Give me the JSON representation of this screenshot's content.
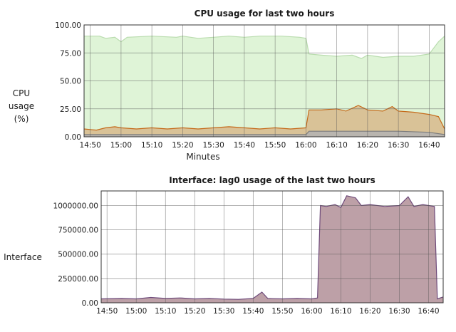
{
  "charts": {
    "cpu": {
      "title": "CPU usage for last two hours",
      "ylabel": [
        "CPU",
        "usage",
        "(%)"
      ],
      "xlabel": "Minutes"
    },
    "iface": {
      "title": "Interface: lag0 usage of the last two hours",
      "ylabel": "Interface"
    }
  },
  "chart_data": [
    {
      "type": "area",
      "title": "CPU usage for last two hours",
      "xlabel": "Minutes",
      "ylabel": "CPU usage (%)",
      "ylim": [
        0,
        100
      ],
      "yticks": [
        "0.00",
        "25.00",
        "50.00",
        "75.00",
        "100.00"
      ],
      "xticks": [
        "14:50",
        "15:00",
        "15:10",
        "15:20",
        "15:30",
        "15:40",
        "15:50",
        "16:00",
        "16:10",
        "16:20",
        "16:30",
        "16:40"
      ],
      "xlim": [
        "14:48",
        "16:45"
      ],
      "grid": true,
      "series": [
        {
          "color": "#d9f2d0",
          "line_color": "#b9dcae",
          "points": [
            [
              "14:48",
              90
            ],
            [
              "14:53",
              90
            ],
            [
              "14:55",
              88
            ],
            [
              "14:58",
              89
            ],
            [
              "15:00",
              85
            ],
            [
              "15:02",
              89
            ],
            [
              "15:10",
              90
            ],
            [
              "15:18",
              89
            ],
            [
              "15:20",
              90
            ],
            [
              "15:25",
              88
            ],
            [
              "15:30",
              89
            ],
            [
              "15:35",
              90
            ],
            [
              "15:40",
              89
            ],
            [
              "15:45",
              90
            ],
            [
              "15:52",
              90
            ],
            [
              "15:58",
              89
            ],
            [
              "16:00",
              88
            ],
            [
              "16:01",
              74
            ],
            [
              "16:05",
              73
            ],
            [
              "16:10",
              72
            ],
            [
              "16:15",
              73
            ],
            [
              "16:18",
              70
            ],
            [
              "16:20",
              73
            ],
            [
              "16:25",
              71
            ],
            [
              "16:30",
              72
            ],
            [
              "16:35",
              72
            ],
            [
              "16:40",
              74
            ],
            [
              "16:43",
              85
            ],
            [
              "16:45",
              90
            ]
          ]
        },
        {
          "color": "#d8b98c",
          "line_color": "#c56a1a",
          "points": [
            [
              "14:48",
              7
            ],
            [
              "14:52",
              6
            ],
            [
              "14:55",
              8
            ],
            [
              "14:58",
              9
            ],
            [
              "15:00",
              8
            ],
            [
              "15:05",
              7
            ],
            [
              "15:10",
              8
            ],
            [
              "15:15",
              7
            ],
            [
              "15:20",
              8
            ],
            [
              "15:25",
              7
            ],
            [
              "15:30",
              8
            ],
            [
              "15:35",
              9
            ],
            [
              "15:40",
              8
            ],
            [
              "15:45",
              7
            ],
            [
              "15:50",
              8
            ],
            [
              "15:55",
              7
            ],
            [
              "16:00",
              8
            ],
            [
              "16:01",
              24
            ],
            [
              "16:05",
              24
            ],
            [
              "16:10",
              25
            ],
            [
              "16:13",
              23
            ],
            [
              "16:17",
              28
            ],
            [
              "16:20",
              24
            ],
            [
              "16:25",
              23
            ],
            [
              "16:28",
              27
            ],
            [
              "16:30",
              23
            ],
            [
              "16:35",
              22
            ],
            [
              "16:40",
              20
            ],
            [
              "16:43",
              18
            ],
            [
              "16:45",
              7
            ]
          ]
        },
        {
          "color": "#b3b3b3",
          "line_color": "#7d7d7d",
          "points": [
            [
              "14:48",
              2
            ],
            [
              "15:00",
              2
            ],
            [
              "15:30",
              2
            ],
            [
              "16:00",
              2
            ],
            [
              "16:01",
              5
            ],
            [
              "16:10",
              5
            ],
            [
              "16:20",
              5
            ],
            [
              "16:30",
              5
            ],
            [
              "16:40",
              4
            ],
            [
              "16:45",
              2
            ]
          ]
        }
      ]
    },
    {
      "type": "area",
      "title": "Interface: lag0 usage of the last two hours",
      "ylabel": "Interface",
      "ylim": [
        0,
        1150000
      ],
      "yticks": [
        "0.00",
        "250000.00",
        "500000.00",
        "750000.00",
        "1000000.00"
      ],
      "xticks": [
        "14:50",
        "15:00",
        "15:10",
        "15:20",
        "15:30",
        "15:40",
        "15:50",
        "16:00",
        "16:10",
        "16:20",
        "16:30",
        "16:40"
      ],
      "xlim": [
        "14:48",
        "16:45"
      ],
      "grid": true,
      "series": [
        {
          "color": "#b28f98",
          "line_color": "#6e4a7a",
          "points": [
            [
              "14:48",
              40000
            ],
            [
              "14:55",
              45000
            ],
            [
              "15:00",
              40000
            ],
            [
              "15:05",
              55000
            ],
            [
              "15:10",
              45000
            ],
            [
              "15:15",
              50000
            ],
            [
              "15:20",
              40000
            ],
            [
              "15:25",
              45000
            ],
            [
              "15:30",
              38000
            ],
            [
              "15:35",
              35000
            ],
            [
              "15:40",
              45000
            ],
            [
              "15:43",
              110000
            ],
            [
              "15:45",
              45000
            ],
            [
              "15:50",
              40000
            ],
            [
              "15:55",
              45000
            ],
            [
              "16:00",
              40000
            ],
            [
              "16:02",
              50000
            ],
            [
              "16:03",
              1000000
            ],
            [
              "16:05",
              990000
            ],
            [
              "16:08",
              1010000
            ],
            [
              "16:10",
              980000
            ],
            [
              "16:12",
              1100000
            ],
            [
              "16:15",
              1080000
            ],
            [
              "16:17",
              1000000
            ],
            [
              "16:20",
              1010000
            ],
            [
              "16:25",
              990000
            ],
            [
              "16:30",
              1000000
            ],
            [
              "16:33",
              1090000
            ],
            [
              "16:35",
              990000
            ],
            [
              "16:38",
              1010000
            ],
            [
              "16:42",
              990000
            ],
            [
              "16:43",
              40000
            ],
            [
              "16:45",
              60000
            ]
          ]
        }
      ]
    }
  ]
}
